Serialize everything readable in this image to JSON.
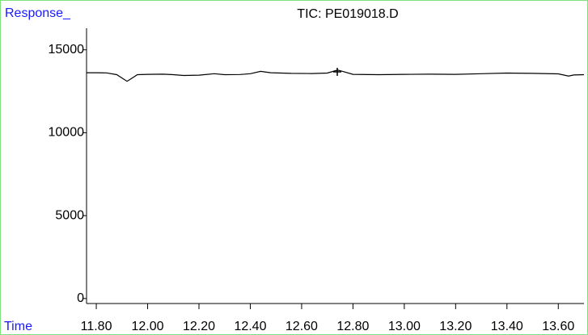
{
  "chart_data": {
    "type": "line",
    "title": "TIC: PE019018.D",
    "y_label": "Response_",
    "x_label": "Time",
    "x": [
      11.762,
      11.8,
      11.84,
      11.88,
      11.9,
      11.92,
      11.94,
      11.96,
      12.0,
      12.06,
      12.1,
      12.14,
      12.2,
      12.26,
      12.3,
      12.36,
      12.4,
      12.44,
      12.48,
      12.56,
      12.64,
      12.7,
      12.74,
      12.76,
      12.8,
      12.9,
      13.0,
      13.1,
      13.2,
      13.3,
      13.4,
      13.5,
      13.6,
      13.64,
      13.66,
      13.7
    ],
    "series": [
      {
        "name": "TIC",
        "color": "#000000",
        "values": [
          13620,
          13620,
          13610,
          13500,
          13300,
          13100,
          13300,
          13500,
          13520,
          13530,
          13500,
          13450,
          13470,
          13560,
          13500,
          13510,
          13560,
          13700,
          13620,
          13580,
          13570,
          13600,
          13780,
          13700,
          13520,
          13500,
          13520,
          13530,
          13520,
          13560,
          13600,
          13580,
          13550,
          13420,
          13480,
          13500
        ]
      }
    ],
    "xlim": [
      11.762,
      13.7
    ],
    "ylim": [
      -300,
      16300
    ],
    "xticks": [
      {
        "value": 11.8,
        "label": "11.80"
      },
      {
        "value": 12.0,
        "label": "12.00"
      },
      {
        "value": 12.2,
        "label": "12.20"
      },
      {
        "value": 12.4,
        "label": "12.40"
      },
      {
        "value": 12.6,
        "label": "12.60"
      },
      {
        "value": 12.8,
        "label": "12.80"
      },
      {
        "value": 13.0,
        "label": "13.00"
      },
      {
        "value": 13.2,
        "label": "13.20"
      },
      {
        "value": 13.4,
        "label": "13.40"
      },
      {
        "value": 13.6,
        "label": "13.60"
      }
    ],
    "yticks": [
      0,
      5000,
      10000,
      15000
    ],
    "grid": false
  }
}
